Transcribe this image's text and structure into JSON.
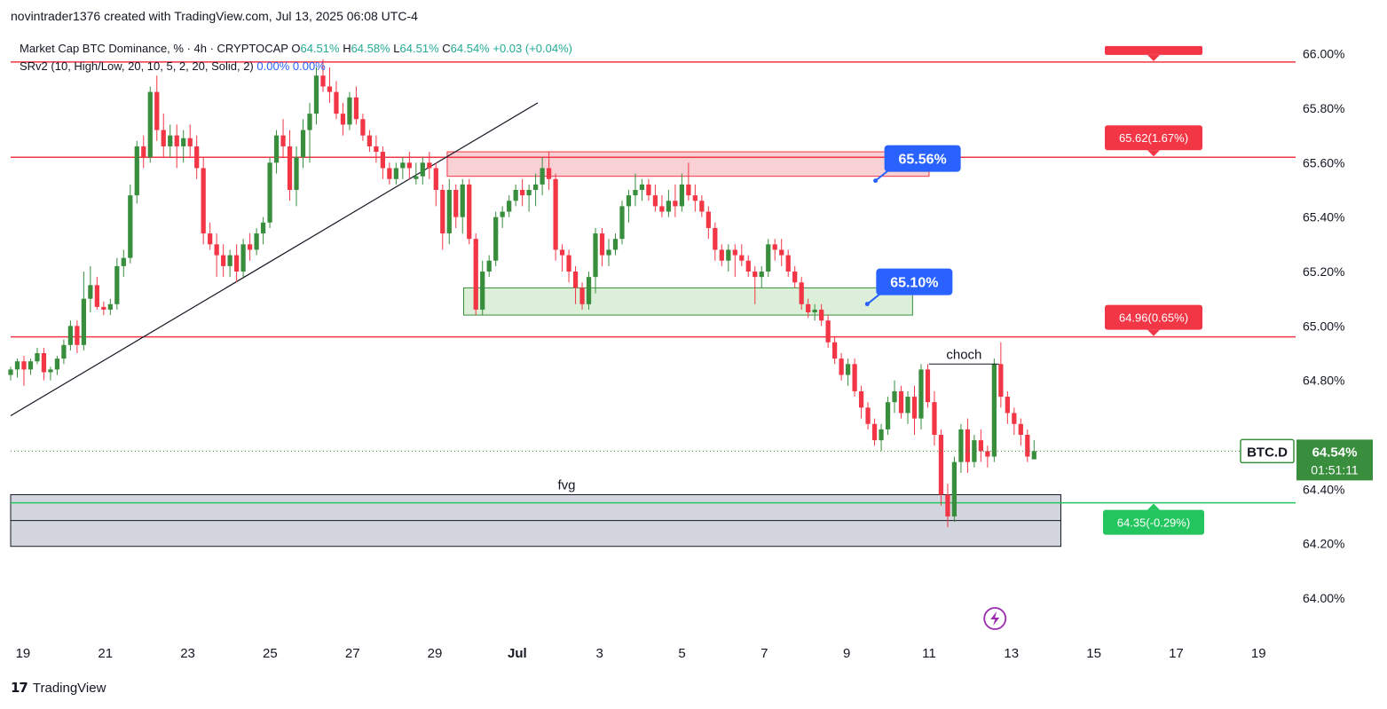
{
  "header": {
    "attribution": "novintrader1376 created with TradingView.com, Jul 13, 2025 06:08 UTC-4"
  },
  "legend": {
    "symbol_line": "Market Cap BTC Dominance, % · 4h · CRYPTOCAP",
    "open_label": "O",
    "open_value": "64.51%",
    "high_label": "H",
    "high_value": "64.58%",
    "low_label": "L",
    "low_value": "64.51%",
    "close_label": "C",
    "close_value": "64.54%",
    "change": "+0.03 (+0.04%)",
    "indicator": "SRv2 (10, High/Low, 20, 10, 5, 2, 20, Solid, 2)",
    "ind_val1": "0.00%",
    "ind_val2": "0.00%"
  },
  "footer": {
    "brand": "TradingView",
    "logo_mark": "17"
  },
  "colors": {
    "up": "#22ab94",
    "up_body": "#388e3c",
    "down": "#f23645",
    "resistance": "#f23645",
    "support": "#22c55e",
    "callout_blue": "#2962ff",
    "price_badge": "#388e3c",
    "supply_zone": "#f8c8cc",
    "demand_zone": "#d6ecd2",
    "fvg_zone": "#d1d4dc"
  },
  "chart_data": {
    "type": "candlestick",
    "symbol": "BTC.D",
    "timeframe": "4h",
    "ylim": [
      63.85,
      66.1
    ],
    "y_ticks": [
      "66.00%",
      "65.80%",
      "65.60%",
      "65.40%",
      "65.20%",
      "65.00%",
      "64.80%",
      "64.60%",
      "64.40%",
      "64.20%",
      "64.00%"
    ],
    "y_tick_values": [
      66.0,
      65.8,
      65.6,
      65.4,
      65.2,
      65.0,
      64.8,
      64.6,
      64.4,
      64.2,
      64.0
    ],
    "x_ticks": [
      "19",
      "21",
      "23",
      "25",
      "27",
      "29",
      "Jul",
      "3",
      "5",
      "7",
      "9",
      "11",
      "13",
      "15",
      "17",
      "19"
    ],
    "x_tick_days": [
      -12,
      -10,
      -8,
      -6,
      -4,
      -2,
      0,
      2,
      4,
      6,
      8,
      10,
      12,
      14,
      16,
      18
    ],
    "x_range_days": [
      -12.3,
      18.9
    ],
    "trendline": {
      "from": {
        "day": -12.3,
        "price": 64.67
      },
      "to": {
        "day": 0.5,
        "price": 65.82
      }
    },
    "horizontal_levels": [
      {
        "price": 65.97,
        "label": "",
        "color": "resistance"
      },
      {
        "price": 65.62,
        "label": "65.62(1.67%)",
        "color": "resistance"
      },
      {
        "price": 64.96,
        "label": "64.96(0.65%)",
        "color": "resistance"
      },
      {
        "price": 64.35,
        "label": "64.35(-0.29%)",
        "color": "support"
      }
    ],
    "zones": [
      {
        "name": "supply",
        "day_from": -1.7,
        "day_to": 10.0,
        "price_from": 65.55,
        "price_to": 65.64,
        "color": "supply_zone"
      },
      {
        "name": "demand",
        "day_from": -1.3,
        "day_to": 9.6,
        "price_from": 65.04,
        "price_to": 65.14,
        "color": "demand_zone"
      },
      {
        "name": "fvg",
        "day_from": -12.3,
        "day_to": 13.2,
        "price_from": 64.19,
        "price_to": 64.38,
        "color": "fvg_zone",
        "label": "fvg"
      }
    ],
    "callouts": [
      {
        "text": "65.56%",
        "day": 8.7,
        "price": 65.56
      },
      {
        "text": "65.10%",
        "day": 8.5,
        "price": 65.1
      }
    ],
    "annotations": [
      {
        "text": "choch",
        "day_from": 10.0,
        "day_to": 11.7,
        "price": 64.86
      }
    ],
    "current_price": {
      "symbol": "BTC.D",
      "value": "64.54%",
      "countdown": "01:51:11",
      "price": 64.54
    },
    "candles": [
      [
        64.82,
        64.85,
        64.8,
        64.84
      ],
      [
        64.84,
        64.88,
        64.81,
        64.87
      ],
      [
        64.87,
        64.89,
        64.78,
        64.84
      ],
      [
        64.84,
        64.88,
        64.82,
        64.87
      ],
      [
        64.87,
        64.92,
        64.86,
        64.9
      ],
      [
        64.9,
        64.92,
        64.8,
        64.83
      ],
      [
        64.83,
        64.85,
        64.8,
        64.84
      ],
      [
        64.84,
        64.89,
        64.82,
        64.88
      ],
      [
        64.88,
        64.95,
        64.86,
        64.93
      ],
      [
        64.93,
        65.02,
        64.91,
        65.0
      ],
      [
        65.0,
        65.02,
        64.9,
        64.93
      ],
      [
        64.93,
        65.2,
        64.91,
        65.1
      ],
      [
        65.1,
        65.22,
        65.05,
        65.15
      ],
      [
        65.15,
        65.18,
        65.06,
        65.07
      ],
      [
        65.07,
        65.09,
        65.04,
        65.06
      ],
      [
        65.06,
        65.1,
        65.04,
        65.08
      ],
      [
        65.08,
        65.25,
        65.06,
        65.22
      ],
      [
        65.22,
        65.28,
        65.18,
        65.25
      ],
      [
        65.25,
        65.52,
        65.23,
        65.48
      ],
      [
        65.48,
        65.68,
        65.45,
        65.66
      ],
      [
        65.66,
        65.7,
        65.58,
        65.62
      ],
      [
        65.62,
        65.88,
        65.6,
        65.86
      ],
      [
        65.86,
        65.92,
        65.68,
        65.72
      ],
      [
        65.72,
        65.78,
        65.62,
        65.66
      ],
      [
        65.66,
        65.74,
        65.62,
        65.7
      ],
      [
        65.7,
        65.74,
        65.58,
        65.66
      ],
      [
        65.66,
        65.72,
        65.6,
        65.69
      ],
      [
        65.69,
        65.74,
        65.62,
        65.66
      ],
      [
        65.66,
        65.7,
        65.54,
        65.58
      ],
      [
        65.58,
        65.62,
        65.3,
        65.34
      ],
      [
        65.34,
        65.38,
        65.28,
        65.3
      ],
      [
        65.3,
        65.34,
        65.18,
        65.26
      ],
      [
        65.26,
        65.3,
        65.18,
        65.22
      ],
      [
        65.22,
        65.28,
        65.18,
        65.26
      ],
      [
        65.26,
        65.3,
        65.16,
        65.2
      ],
      [
        65.2,
        65.32,
        65.18,
        65.3
      ],
      [
        65.3,
        65.34,
        65.24,
        65.28
      ],
      [
        65.28,
        65.36,
        65.26,
        65.34
      ],
      [
        65.34,
        65.4,
        65.3,
        65.38
      ],
      [
        65.38,
        65.62,
        65.36,
        65.6
      ],
      [
        65.6,
        65.72,
        65.56,
        65.7
      ],
      [
        65.7,
        65.76,
        65.62,
        65.66
      ],
      [
        65.66,
        65.72,
        65.46,
        65.5
      ],
      [
        65.5,
        65.66,
        65.44,
        65.62
      ],
      [
        65.62,
        65.76,
        65.58,
        65.72
      ],
      [
        65.72,
        65.82,
        65.6,
        65.78
      ],
      [
        65.78,
        65.95,
        65.74,
        65.92
      ],
      [
        65.92,
        65.98,
        65.86,
        65.88
      ],
      [
        65.88,
        65.95,
        65.82,
        65.86
      ],
      [
        65.86,
        65.9,
        65.76,
        65.78
      ],
      [
        65.78,
        65.82,
        65.7,
        65.74
      ],
      [
        65.74,
        65.86,
        65.72,
        65.84
      ],
      [
        65.84,
        65.88,
        65.74,
        65.76
      ],
      [
        65.76,
        65.78,
        65.68,
        65.7
      ],
      [
        65.7,
        65.72,
        65.64,
        65.66
      ],
      [
        65.66,
        65.7,
        65.6,
        65.64
      ],
      [
        65.64,
        65.66,
        65.54,
        65.58
      ],
      [
        65.58,
        65.6,
        65.52,
        65.54
      ],
      [
        65.54,
        65.6,
        65.52,
        65.58
      ],
      [
        65.58,
        65.62,
        65.54,
        65.6
      ],
      [
        65.6,
        65.64,
        65.54,
        65.58
      ],
      [
        65.54,
        65.6,
        65.52,
        65.55
      ],
      [
        65.55,
        65.62,
        65.52,
        65.6
      ],
      [
        65.6,
        65.64,
        65.54,
        65.58
      ],
      [
        65.58,
        65.6,
        65.44,
        65.5
      ],
      [
        65.5,
        65.52,
        65.28,
        65.34
      ],
      [
        65.34,
        65.54,
        65.3,
        65.5
      ],
      [
        65.5,
        65.52,
        65.36,
        65.4
      ],
      [
        65.4,
        65.54,
        65.34,
        65.52
      ],
      [
        65.52,
        65.54,
        65.3,
        65.32
      ],
      [
        65.32,
        65.34,
        65.04,
        65.06
      ],
      [
        65.06,
        65.24,
        65.04,
        65.2
      ],
      [
        65.2,
        65.26,
        65.18,
        65.24
      ],
      [
        65.24,
        65.42,
        65.22,
        65.4
      ],
      [
        65.4,
        65.44,
        65.36,
        65.42
      ],
      [
        65.42,
        65.48,
        65.4,
        65.46
      ],
      [
        65.46,
        65.52,
        65.44,
        65.5
      ],
      [
        65.5,
        65.54,
        65.44,
        65.48
      ],
      [
        65.48,
        65.52,
        65.42,
        65.5
      ],
      [
        65.5,
        65.56,
        65.44,
        65.52
      ],
      [
        65.52,
        65.62,
        65.48,
        65.58
      ],
      [
        65.58,
        65.64,
        65.5,
        65.54
      ],
      [
        65.54,
        65.56,
        65.24,
        65.28
      ],
      [
        65.28,
        65.3,
        65.2,
        65.26
      ],
      [
        65.26,
        65.28,
        65.16,
        65.2
      ],
      [
        65.2,
        65.22,
        65.08,
        65.14
      ],
      [
        65.14,
        65.16,
        65.06,
        65.08
      ],
      [
        65.08,
        65.2,
        65.06,
        65.18
      ],
      [
        65.18,
        65.36,
        65.12,
        65.34
      ],
      [
        65.34,
        65.36,
        65.22,
        65.26
      ],
      [
        65.26,
        65.32,
        65.22,
        65.28
      ],
      [
        65.28,
        65.34,
        65.26,
        65.32
      ],
      [
        65.32,
        65.46,
        65.3,
        65.44
      ],
      [
        65.44,
        65.5,
        65.38,
        65.48
      ],
      [
        65.48,
        65.56,
        65.44,
        65.5
      ],
      [
        65.5,
        65.54,
        65.46,
        65.52
      ],
      [
        65.52,
        65.54,
        65.46,
        65.48
      ],
      [
        65.48,
        65.52,
        65.42,
        65.44
      ],
      [
        65.44,
        65.48,
        65.4,
        65.42
      ],
      [
        65.42,
        65.5,
        65.4,
        65.46
      ],
      [
        65.46,
        65.52,
        65.4,
        65.44
      ],
      [
        65.44,
        65.56,
        65.42,
        65.52
      ],
      [
        65.52,
        65.6,
        65.46,
        65.48
      ],
      [
        65.48,
        65.52,
        65.42,
        65.46
      ],
      [
        65.46,
        65.48,
        65.4,
        65.42
      ],
      [
        65.42,
        65.44,
        65.32,
        65.36
      ],
      [
        65.36,
        65.38,
        65.24,
        65.28
      ],
      [
        65.28,
        65.3,
        65.22,
        65.24
      ],
      [
        65.24,
        65.3,
        65.2,
        65.28
      ],
      [
        65.28,
        65.3,
        65.18,
        65.26
      ],
      [
        65.26,
        65.3,
        65.22,
        65.24
      ],
      [
        65.24,
        65.26,
        65.18,
        65.2
      ],
      [
        65.2,
        65.22,
        65.08,
        65.18
      ],
      [
        65.18,
        65.22,
        65.14,
        65.2
      ],
      [
        65.2,
        65.32,
        65.18,
        65.3
      ],
      [
        65.3,
        65.32,
        65.24,
        65.28
      ],
      [
        65.28,
        65.32,
        65.22,
        65.26
      ],
      [
        65.26,
        65.28,
        65.18,
        65.2
      ],
      [
        65.2,
        65.22,
        65.14,
        65.16
      ],
      [
        65.16,
        65.18,
        65.06,
        65.08
      ],
      [
        65.08,
        65.1,
        65.03,
        65.05
      ],
      [
        65.05,
        65.08,
        65.02,
        65.06
      ],
      [
        65.06,
        65.08,
        65.0,
        65.02
      ],
      [
        65.02,
        65.04,
        64.92,
        64.94
      ],
      [
        64.94,
        64.96,
        64.86,
        64.88
      ],
      [
        64.88,
        64.9,
        64.8,
        64.82
      ],
      [
        64.82,
        64.88,
        64.78,
        64.86
      ],
      [
        64.86,
        64.88,
        64.74,
        64.76
      ],
      [
        64.76,
        64.78,
        64.66,
        64.7
      ],
      [
        64.7,
        64.72,
        64.62,
        64.64
      ],
      [
        64.64,
        64.66,
        64.56,
        64.58
      ],
      [
        64.58,
        64.64,
        64.54,
        64.62
      ],
      [
        64.62,
        64.74,
        64.6,
        64.72
      ],
      [
        64.72,
        64.8,
        64.68,
        64.76
      ],
      [
        64.76,
        64.78,
        64.66,
        64.68
      ],
      [
        64.68,
        64.76,
        64.64,
        64.74
      ],
      [
        64.74,
        64.78,
        64.6,
        64.66
      ],
      [
        64.66,
        64.86,
        64.62,
        64.84
      ],
      [
        64.84,
        64.86,
        64.7,
        64.72
      ],
      [
        64.72,
        64.76,
        64.56,
        64.6
      ],
      [
        64.6,
        64.62,
        64.34,
        64.38
      ],
      [
        64.38,
        64.42,
        64.26,
        64.3
      ],
      [
        64.3,
        64.52,
        64.28,
        64.5
      ],
      [
        64.5,
        64.64,
        64.46,
        64.62
      ],
      [
        64.62,
        64.66,
        64.46,
        64.5
      ],
      [
        64.5,
        64.6,
        64.48,
        64.58
      ],
      [
        64.58,
        64.62,
        64.5,
        64.54
      ],
      [
        64.54,
        64.56,
        64.48,
        64.52
      ],
      [
        64.52,
        64.88,
        64.5,
        64.86
      ],
      [
        64.86,
        64.94,
        64.7,
        64.74
      ],
      [
        64.74,
        64.76,
        64.64,
        64.68
      ],
      [
        64.68,
        64.7,
        64.6,
        64.64
      ],
      [
        64.64,
        64.66,
        64.56,
        64.6
      ],
      [
        64.6,
        64.62,
        64.5,
        64.52
      ],
      [
        64.51,
        64.58,
        64.51,
        64.54
      ]
    ]
  }
}
